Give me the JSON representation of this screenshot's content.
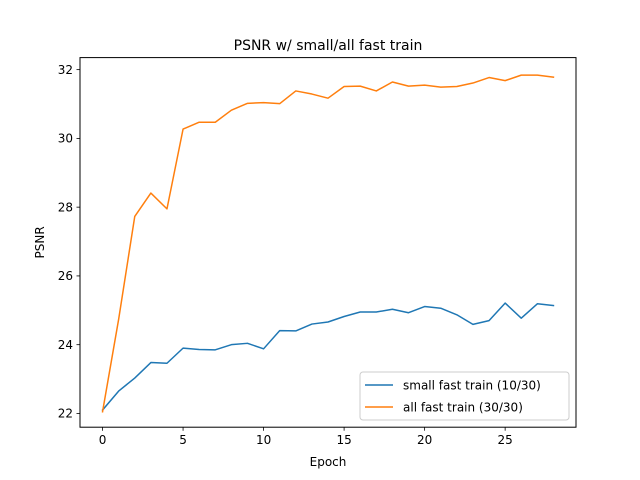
{
  "chart_data": {
    "type": "line",
    "title": "PSNR w/ small/all fast train",
    "xlabel": "Epoch",
    "ylabel": "PSNR",
    "xlim": [
      -1.4,
      29.4
    ],
    "ylim": [
      21.6,
      32.35
    ],
    "xticks": [
      0,
      5,
      10,
      15,
      20,
      25
    ],
    "yticks": [
      22,
      24,
      26,
      28,
      30,
      32
    ],
    "grid": false,
    "legend_position": "lower-right",
    "x": [
      0,
      1,
      2,
      3,
      4,
      5,
      6,
      7,
      8,
      9,
      10,
      11,
      12,
      13,
      14,
      15,
      16,
      17,
      18,
      19,
      20,
      21,
      22,
      23,
      24,
      25,
      26,
      27,
      28
    ],
    "series": [
      {
        "name": "small fast train (10/30)",
        "color": "#1f77b4",
        "values": [
          22.1,
          22.65,
          23.03,
          23.48,
          23.46,
          23.9,
          23.86,
          23.85,
          24.0,
          24.04,
          23.88,
          24.41,
          24.4,
          24.6,
          24.66,
          24.82,
          24.95,
          24.95,
          25.03,
          24.93,
          25.11,
          25.06,
          24.87,
          24.59,
          24.7,
          25.21,
          24.77,
          25.19,
          25.14
        ]
      },
      {
        "name": "all fast train (30/30)",
        "color": "#ff7f0e",
        "values": [
          22.05,
          24.74,
          27.73,
          28.41,
          27.95,
          30.27,
          30.47,
          30.47,
          30.82,
          31.02,
          31.04,
          31.01,
          31.38,
          31.29,
          31.17,
          31.51,
          31.52,
          31.38,
          31.64,
          31.52,
          31.55,
          31.49,
          31.51,
          31.61,
          31.77,
          31.68,
          31.84,
          31.84,
          31.78
        ]
      }
    ]
  }
}
